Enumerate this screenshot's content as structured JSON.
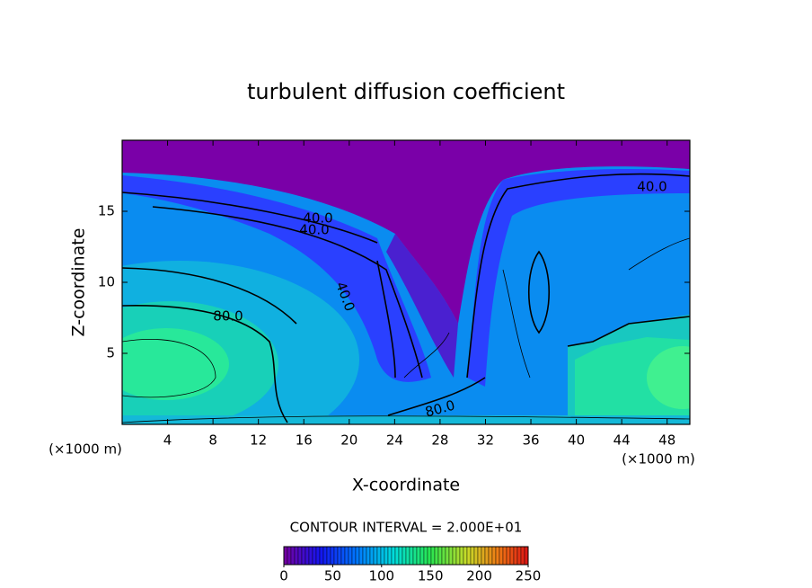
{
  "chart_data": {
    "type": "contour",
    "title": "turbulent diffusion coefficient",
    "x_label": "X-coordinate",
    "y_label": "Z-coordinate",
    "x_unit_left": "(×1000 m)",
    "x_unit_right": "(×1000 m)",
    "xlim": [
      0,
      50
    ],
    "xticks": [
      4,
      8,
      12,
      16,
      20,
      24,
      28,
      32,
      36,
      40,
      44,
      48
    ],
    "ylim": [
      0,
      20
    ],
    "yticks": [
      5,
      10,
      15
    ],
    "contour_labels": [
      {
        "value": 40,
        "label": "40.0"
      },
      {
        "value": 40,
        "label": "40.0"
      },
      {
        "value": 40,
        "label": "40.0"
      },
      {
        "value": 80,
        "label": "80.0"
      },
      {
        "value": 80,
        "label": "80.0"
      },
      {
        "value": 40,
        "label": "40.0"
      }
    ],
    "contour_interval_text": "CONTOUR INTERVAL = 2.000E+01",
    "colorbar": {
      "clim": [
        0,
        250
      ],
      "ticks": [
        0,
        50,
        100,
        150,
        200,
        250
      ]
    }
  }
}
